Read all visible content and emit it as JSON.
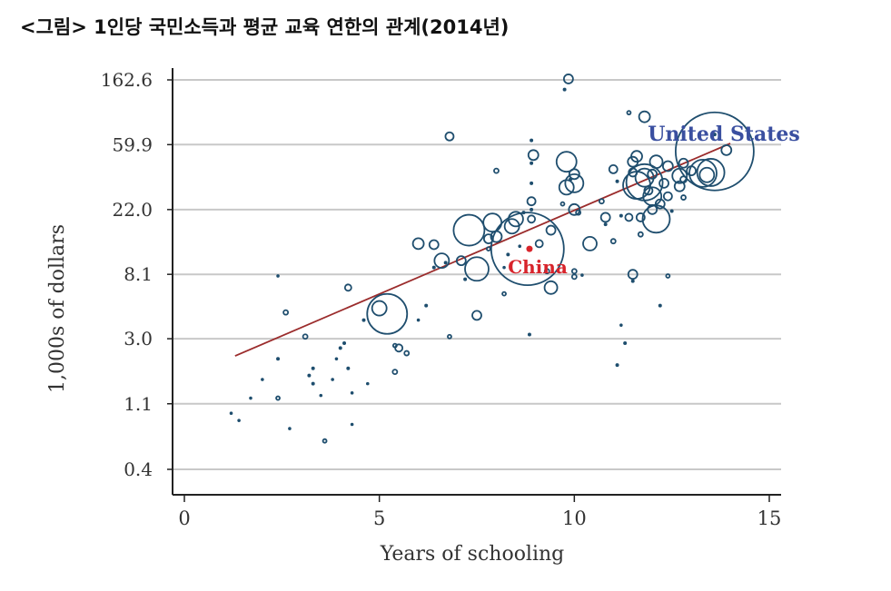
{
  "page": {
    "title": "<그림> 1인당 국민소득과 평균 교육 연한의 관계(2014년)"
  },
  "colors": {
    "grid": "#c8c8c8",
    "axis": "#222222",
    "bubble": "#1f4e6e",
    "trend": "#9b2c2c",
    "us_label": "#3a4fa0",
    "china_label": "#d8242b",
    "text": "#333333"
  },
  "chart_data": {
    "type": "scatter",
    "title": "",
    "xlabel": "Years of schooling",
    "ylabel": "1,000s of dollars",
    "xlim": [
      -0.3,
      15.3
    ],
    "xticks": [
      0,
      5,
      10,
      15
    ],
    "yscale": "log",
    "yticks": [
      {
        "value": 0.4,
        "label": "0.4"
      },
      {
        "value": 1.1,
        "label": "1.1"
      },
      {
        "value": 3.0,
        "label": "3.0"
      },
      {
        "value": 8.1,
        "label": "8.1"
      },
      {
        "value": 22.0,
        "label": "22.0"
      },
      {
        "value": 59.9,
        "label": "59.9"
      },
      {
        "value": 162.6,
        "label": "162.6"
      }
    ],
    "ylim": [
      0.33,
      200
    ],
    "grid": "horizontal",
    "trendline": {
      "x": [
        1.3,
        14.0
      ],
      "y": [
        2.3,
        61
      ]
    },
    "annotations": [
      {
        "text": "United States",
        "x": 13.6,
        "y": 64,
        "color": "us"
      },
      {
        "text": "China",
        "x": 8.85,
        "y": 8.6,
        "color": "china"
      }
    ],
    "highlight": {
      "name": "China",
      "x": 8.85,
      "y": 12.0
    },
    "points": [
      [
        1.2,
        0.95,
        1
      ],
      [
        1.4,
        0.85,
        1
      ],
      [
        1.7,
        1.2,
        1
      ],
      [
        2.0,
        1.6,
        1.2
      ],
      [
        2.4,
        1.2,
        2
      ],
      [
        2.4,
        2.2,
        1.5
      ],
      [
        2.6,
        4.5,
        2.5
      ],
      [
        2.7,
        0.75,
        1
      ],
      [
        2.4,
        7.9,
        1
      ],
      [
        3.1,
        3.1,
        2.5
      ],
      [
        3.2,
        1.7,
        1.5
      ],
      [
        3.3,
        1.5,
        1.5
      ],
      [
        3.3,
        1.9,
        1.5
      ],
      [
        3.5,
        1.25,
        1.2
      ],
      [
        3.6,
        0.62,
        2
      ],
      [
        3.8,
        1.6,
        1.2
      ],
      [
        3.9,
        2.2,
        1.2
      ],
      [
        4.0,
        2.6,
        1.5
      ],
      [
        4.1,
        2.8,
        1.5
      ],
      [
        4.2,
        6.6,
        3.5
      ],
      [
        4.3,
        1.3,
        1
      ],
      [
        4.3,
        0.8,
        1
      ],
      [
        4.7,
        1.5,
        1
      ],
      [
        4.6,
        4.0,
        1.5
      ],
      [
        4.2,
        1.9,
        1.5
      ],
      [
        5.0,
        4.8,
        8
      ],
      [
        5.2,
        4.4,
        22
      ],
      [
        5.5,
        2.6,
        4
      ],
      [
        5.4,
        2.7,
        2
      ],
      [
        5.4,
        1.8,
        2.5
      ],
      [
        5.7,
        2.4,
        2.5
      ],
      [
        6.0,
        4.0,
        1.2
      ],
      [
        6.0,
        13.0,
        6
      ],
      [
        6.2,
        5.0,
        1.5
      ],
      [
        6.4,
        9.0,
        1.5
      ],
      [
        6.4,
        12.8,
        5
      ],
      [
        6.6,
        10.0,
        8
      ],
      [
        6.7,
        9.7,
        1.5
      ],
      [
        6.8,
        3.1,
        2
      ],
      [
        6.8,
        68,
        4.5
      ],
      [
        7.1,
        10.0,
        5
      ],
      [
        7.2,
        7.5,
        1.5
      ],
      [
        7.3,
        16,
        17
      ],
      [
        7.5,
        8.8,
        13
      ],
      [
        7.5,
        4.3,
        5
      ],
      [
        7.8,
        12.0,
        2
      ],
      [
        7.8,
        14.0,
        5
      ],
      [
        7.9,
        18.0,
        10
      ],
      [
        8.0,
        14.5,
        6
      ],
      [
        8.0,
        40,
        2.5
      ],
      [
        8.2,
        9.0,
        1
      ],
      [
        8.2,
        6.0,
        2
      ],
      [
        8.3,
        11.0,
        1.5
      ],
      [
        8.4,
        17.0,
        8
      ],
      [
        8.5,
        19.0,
        8
      ],
      [
        8.6,
        12.5,
        1.2
      ],
      [
        8.7,
        21.0,
        1.5
      ],
      [
        8.8,
        12.0,
        40
      ],
      [
        8.85,
        3.2,
        1.5
      ],
      [
        8.9,
        25.0,
        4.5
      ],
      [
        8.9,
        33.0,
        1.5
      ],
      [
        8.9,
        45.0,
        1.5
      ],
      [
        8.95,
        51.0,
        5.5
      ],
      [
        8.9,
        64.0,
        1.5
      ],
      [
        8.9,
        19.0,
        4
      ],
      [
        9.1,
        13.0,
        4
      ],
      [
        9.3,
        8.5,
        2.5
      ],
      [
        9.4,
        6.6,
        7
      ],
      [
        9.4,
        16.0,
        5
      ],
      [
        9.7,
        24.0,
        2
      ],
      [
        9.8,
        46.0,
        11
      ],
      [
        9.8,
        31.0,
        8
      ],
      [
        9.9,
        35.0,
        1.5
      ],
      [
        10.0,
        33.0,
        10
      ],
      [
        10.0,
        8.5,
        2.5
      ],
      [
        10.0,
        7.8,
        2.5
      ],
      [
        10.0,
        22.0,
        6
      ],
      [
        10.1,
        21.0,
        2.5
      ],
      [
        10.2,
        8.0,
        1
      ],
      [
        9.75,
        140.0,
        1.5
      ],
      [
        9.85,
        165.0,
        5
      ],
      [
        10.0,
        38.0,
        5.5
      ],
      [
        10.4,
        13.0,
        7.5
      ],
      [
        10.7,
        25.0,
        2.5
      ],
      [
        10.8,
        19.5,
        5
      ],
      [
        10.8,
        17.5,
        1.5
      ],
      [
        11.0,
        13.5,
        2.5
      ],
      [
        11.0,
        41.0,
        4.5
      ],
      [
        11.1,
        34.0,
        1.5
      ],
      [
        11.1,
        2.0,
        1.5
      ],
      [
        11.2,
        3.7,
        1
      ],
      [
        11.2,
        20.0,
        1.5
      ],
      [
        11.3,
        2.8,
        1.5
      ],
      [
        11.4,
        19.5,
        4
      ],
      [
        11.4,
        98.0,
        2
      ],
      [
        11.5,
        7.3,
        1.5
      ],
      [
        11.5,
        8.1,
        5
      ],
      [
        11.5,
        39.0,
        4.5
      ],
      [
        11.5,
        46.0,
        5.5
      ],
      [
        11.6,
        50.0,
        6
      ],
      [
        11.6,
        32.0,
        15
      ],
      [
        11.7,
        15.0,
        2.5
      ],
      [
        11.7,
        19.5,
        4.5
      ],
      [
        11.8,
        36.0,
        10
      ],
      [
        11.8,
        33.5,
        20
      ],
      [
        11.8,
        92.0,
        6
      ],
      [
        11.9,
        29.5,
        4.5
      ],
      [
        12.0,
        22.0,
        5
      ],
      [
        12.0,
        27.0,
        10
      ],
      [
        12.0,
        38.0,
        5
      ],
      [
        12.1,
        19.0,
        15
      ],
      [
        12.1,
        46.0,
        7
      ],
      [
        12.2,
        5.0,
        1.5
      ],
      [
        12.2,
        24.0,
        5
      ],
      [
        12.3,
        33.0,
        5
      ],
      [
        12.4,
        27.0,
        4.5
      ],
      [
        12.4,
        43.0,
        5.5
      ],
      [
        12.4,
        7.9,
        2
      ],
      [
        12.5,
        21.5,
        1.5
      ],
      [
        12.7,
        31.5,
        5.5
      ],
      [
        12.7,
        37.0,
        8
      ],
      [
        12.8,
        45.0,
        5
      ],
      [
        12.8,
        26.5,
        2.5
      ],
      [
        12.8,
        35.0,
        3.5
      ],
      [
        13.0,
        40.0,
        5
      ],
      [
        13.3,
        38.5,
        15
      ],
      [
        13.4,
        37.5,
        8
      ],
      [
        13.5,
        39.0,
        15
      ],
      [
        13.6,
        54.0,
        43
      ],
      [
        13.9,
        55.0,
        5.5
      ],
      [
        13.6,
        70.0,
        1.5
      ],
      [
        8.9,
        22.0,
        1.5
      ]
    ]
  }
}
